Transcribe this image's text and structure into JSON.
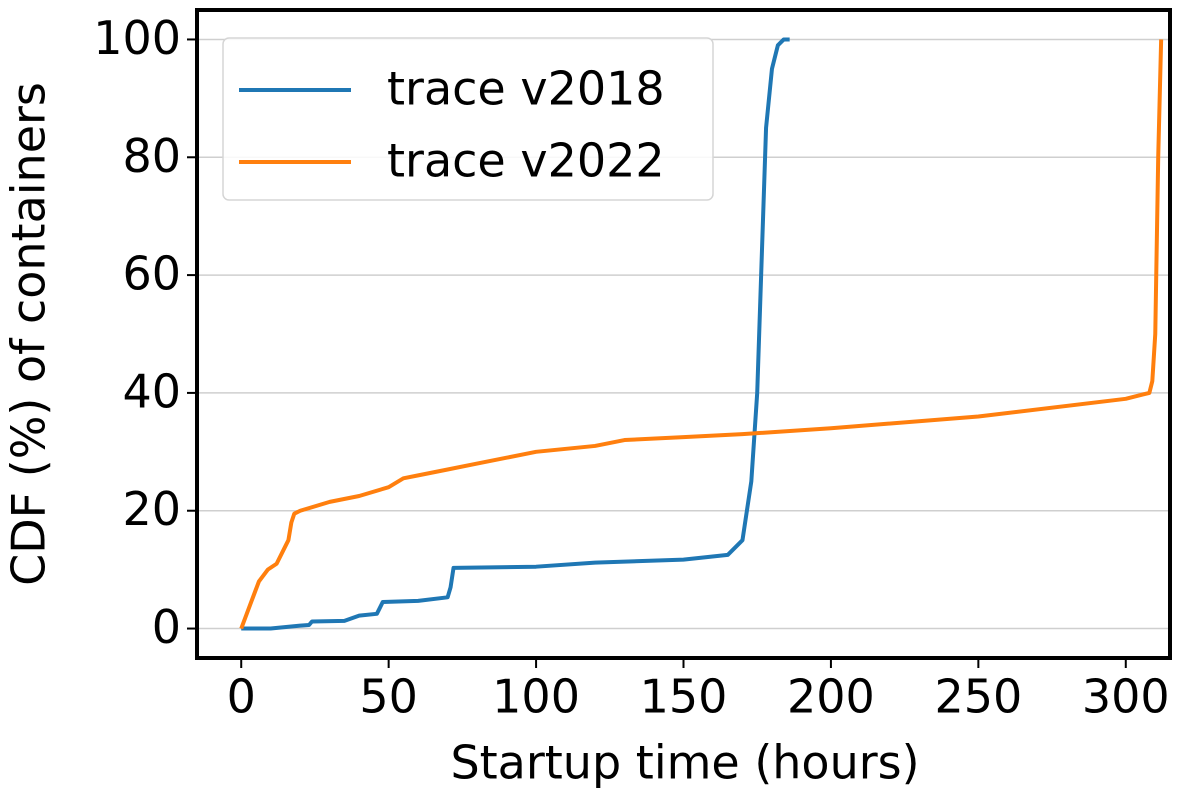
{
  "chart_data": {
    "type": "line",
    "xlabel": "Startup time (hours)",
    "ylabel": "CDF (%) of containers",
    "xlim": [
      -15,
      315
    ],
    "xticks": [
      0,
      50,
      100,
      150,
      200,
      250,
      300
    ],
    "ylim": [
      -5,
      105
    ],
    "yticks": [
      0,
      20,
      40,
      60,
      80,
      100
    ],
    "grid": true,
    "legend": "upper left",
    "series": [
      {
        "name": "trace v2018",
        "color": "#1f77b4",
        "x": [
          0,
          10,
          20,
          23,
          24,
          35,
          40,
          46,
          47,
          48,
          60,
          70,
          71,
          72,
          100,
          120,
          150,
          165,
          170,
          173,
          175,
          176,
          177,
          178,
          180,
          182,
          184,
          186
        ],
        "values": [
          0,
          0,
          0.5,
          0.6,
          1.2,
          1.3,
          2.2,
          2.5,
          3.5,
          4.5,
          4.7,
          5.3,
          7,
          10.3,
          10.5,
          11.2,
          11.7,
          12.5,
          15,
          25,
          40,
          55,
          70,
          85,
          95,
          99,
          100,
          100
        ]
      },
      {
        "name": "trace v2022",
        "color": "#ff7f0e",
        "x": [
          0,
          3,
          6,
          9,
          12,
          15,
          16,
          17,
          18,
          20,
          30,
          40,
          50,
          55,
          60,
          70,
          80,
          90,
          100,
          120,
          130,
          150,
          170,
          200,
          250,
          300,
          308,
          309,
          310,
          311,
          312
        ],
        "values": [
          0,
          4,
          8,
          10,
          11,
          14,
          15,
          18,
          19.5,
          20,
          21.5,
          22.5,
          24,
          25.5,
          26,
          27,
          28,
          29,
          30,
          31,
          32,
          32.5,
          33,
          34,
          36,
          39,
          40,
          42,
          50,
          80,
          100
        ]
      }
    ]
  }
}
